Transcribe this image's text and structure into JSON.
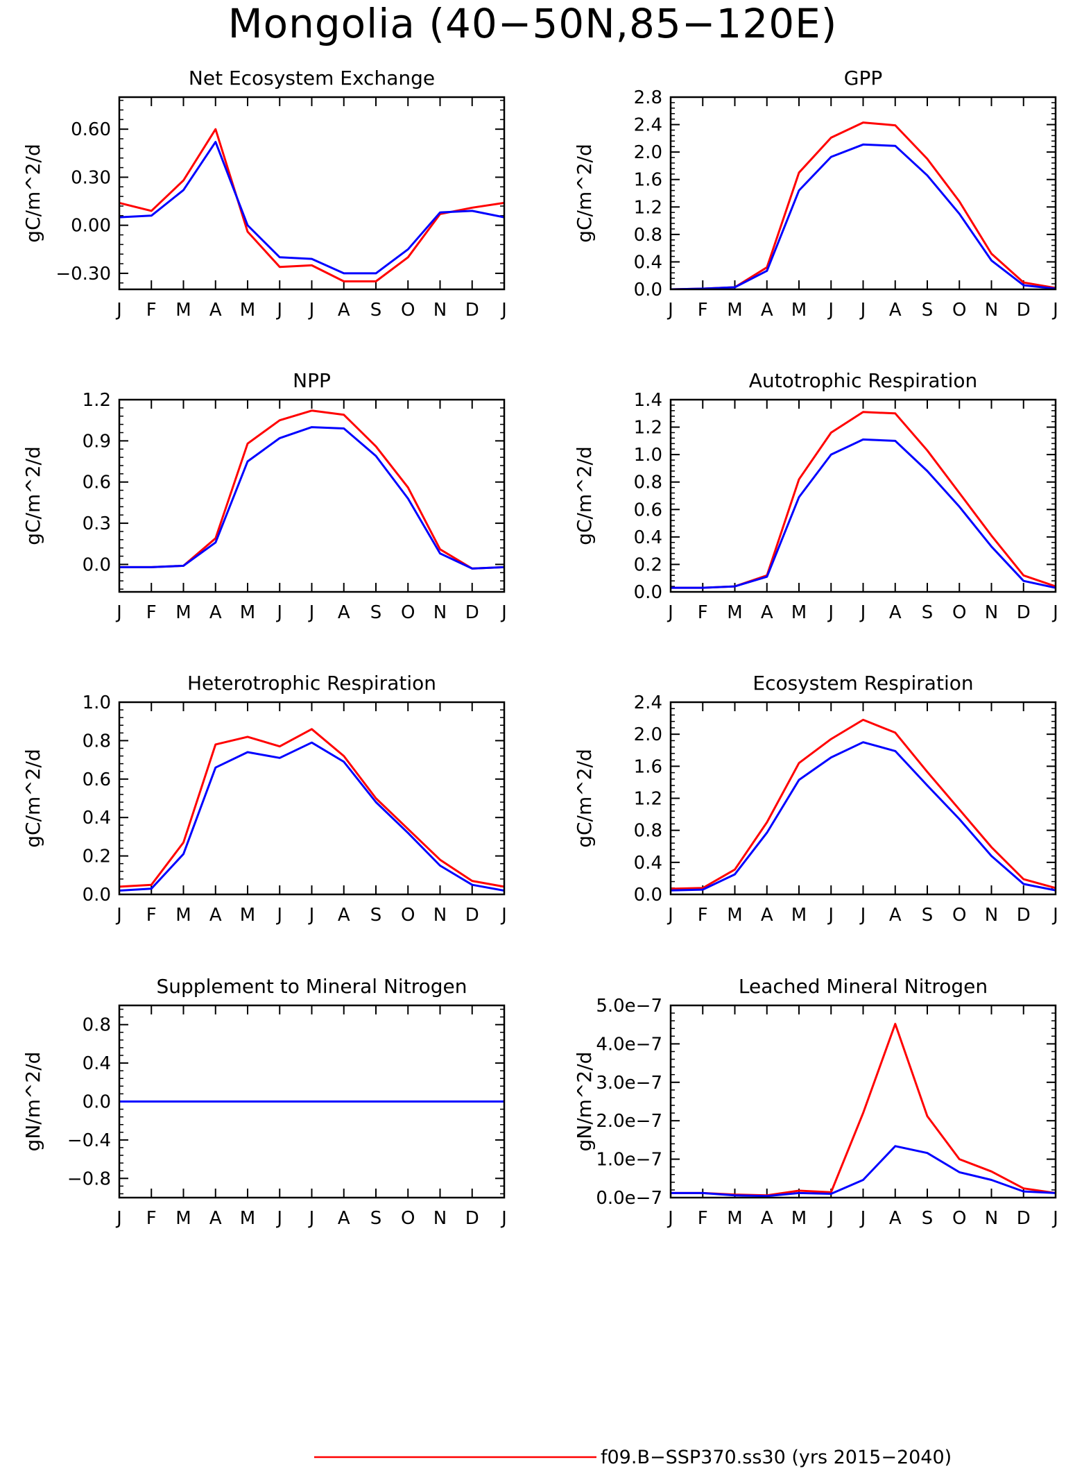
{
  "figure": {
    "title": "Mongolia (40−50N,85−120E)",
    "months": [
      "J",
      "F",
      "M",
      "A",
      "M",
      "J",
      "J",
      "A",
      "S",
      "O",
      "N",
      "D",
      "J"
    ],
    "series_colors": {
      "ssp370": "#ff0000",
      "second": "#0000ff"
    }
  },
  "legend": {
    "entries": [
      {
        "label": "f09.B−SSP370.ss30 (yrs 2015−2040)",
        "color": "#ff0000"
      }
    ]
  },
  "chart_data": [
    {
      "type": "line",
      "title": "Net Ecosystem Exchange",
      "ylabel": "gC/m^2/d",
      "ylim": [
        -0.4,
        0.8
      ],
      "yticks": [
        -0.3,
        0.0,
        0.3,
        0.6
      ],
      "ytick_labels": [
        "−0.30",
        "0.00",
        "0.30",
        "0.60"
      ],
      "x": [
        "J",
        "F",
        "M",
        "A",
        "M",
        "J",
        "J",
        "A",
        "S",
        "O",
        "N",
        "D",
        "J"
      ],
      "series": [
        {
          "color": "#ff0000",
          "values": [
            0.14,
            0.09,
            0.28,
            0.6,
            -0.04,
            -0.26,
            -0.25,
            -0.35,
            -0.35,
            -0.2,
            0.07,
            0.11,
            0.14
          ]
        },
        {
          "color": "#0000ff",
          "values": [
            0.05,
            0.06,
            0.22,
            0.52,
            0.0,
            -0.2,
            -0.21,
            -0.3,
            -0.3,
            -0.15,
            0.08,
            0.09,
            0.05
          ]
        }
      ]
    },
    {
      "type": "line",
      "title": "GPP",
      "ylabel": "gC/m^2/d",
      "ylim": [
        0.0,
        2.8
      ],
      "yticks": [
        0.0,
        0.4,
        0.8,
        1.2,
        1.6,
        2.0,
        2.4,
        2.8
      ],
      "ytick_labels": [
        "0.0",
        "0.4",
        "0.8",
        "1.2",
        "1.6",
        "2.0",
        "2.4",
        "2.8"
      ],
      "x": [
        "J",
        "F",
        "M",
        "A",
        "M",
        "J",
        "J",
        "A",
        "S",
        "O",
        "N",
        "D",
        "J"
      ],
      "series": [
        {
          "color": "#ff0000",
          "values": [
            0.0,
            0.01,
            0.03,
            0.32,
            1.7,
            2.21,
            2.43,
            2.39,
            1.9,
            1.28,
            0.52,
            0.1,
            0.02
          ]
        },
        {
          "color": "#0000ff",
          "values": [
            0.0,
            0.01,
            0.03,
            0.27,
            1.44,
            1.93,
            2.11,
            2.09,
            1.66,
            1.1,
            0.42,
            0.06,
            0.01
          ]
        }
      ]
    },
    {
      "type": "line",
      "title": "NPP",
      "ylabel": "gC/m^2/d",
      "ylim": [
        -0.2,
        1.2
      ],
      "yticks": [
        0.0,
        0.3,
        0.6,
        0.9,
        1.2
      ],
      "ytick_labels": [
        "0.0",
        "0.3",
        "0.6",
        "0.9",
        "1.2"
      ],
      "x": [
        "J",
        "F",
        "M",
        "A",
        "M",
        "J",
        "J",
        "A",
        "S",
        "O",
        "N",
        "D",
        "J"
      ],
      "series": [
        {
          "color": "#ff0000",
          "values": [
            -0.02,
            -0.02,
            -0.01,
            0.19,
            0.88,
            1.05,
            1.12,
            1.09,
            0.86,
            0.56,
            0.11,
            -0.03,
            -0.02
          ]
        },
        {
          "color": "#0000ff",
          "values": [
            -0.02,
            -0.02,
            -0.01,
            0.16,
            0.75,
            0.92,
            1.0,
            0.99,
            0.79,
            0.48,
            0.08,
            -0.03,
            -0.02
          ]
        }
      ]
    },
    {
      "type": "line",
      "title": "Autotrophic Respiration",
      "ylabel": "gC/m^2/d",
      "ylim": [
        0.0,
        1.4
      ],
      "yticks": [
        0.0,
        0.2,
        0.4,
        0.6,
        0.8,
        1.0,
        1.2,
        1.4
      ],
      "ytick_labels": [
        "0.0",
        "0.2",
        "0.4",
        "0.6",
        "0.8",
        "1.0",
        "1.2",
        "1.4"
      ],
      "x": [
        "J",
        "F",
        "M",
        "A",
        "M",
        "J",
        "J",
        "A",
        "S",
        "O",
        "N",
        "D",
        "J"
      ],
      "series": [
        {
          "color": "#ff0000",
          "values": [
            0.03,
            0.03,
            0.04,
            0.12,
            0.82,
            1.16,
            1.31,
            1.3,
            1.03,
            0.72,
            0.41,
            0.12,
            0.04
          ]
        },
        {
          "color": "#0000ff",
          "values": [
            0.03,
            0.03,
            0.04,
            0.11,
            0.69,
            1.0,
            1.11,
            1.1,
            0.88,
            0.62,
            0.33,
            0.08,
            0.03
          ]
        }
      ]
    },
    {
      "type": "line",
      "title": "Heterotrophic Respiration",
      "ylabel": "gC/m^2/d",
      "ylim": [
        0.0,
        1.0
      ],
      "yticks": [
        0.0,
        0.2,
        0.4,
        0.6,
        0.8,
        1.0
      ],
      "ytick_labels": [
        "0.0",
        "0.2",
        "0.4",
        "0.6",
        "0.8",
        "1.0"
      ],
      "x": [
        "J",
        "F",
        "M",
        "A",
        "M",
        "J",
        "J",
        "A",
        "S",
        "O",
        "N",
        "D",
        "J"
      ],
      "series": [
        {
          "color": "#ff0000",
          "values": [
            0.04,
            0.05,
            0.27,
            0.78,
            0.82,
            0.77,
            0.86,
            0.72,
            0.5,
            0.34,
            0.18,
            0.07,
            0.04
          ]
        },
        {
          "color": "#0000ff",
          "values": [
            0.02,
            0.03,
            0.21,
            0.66,
            0.74,
            0.71,
            0.79,
            0.69,
            0.48,
            0.32,
            0.15,
            0.05,
            0.02
          ]
        }
      ]
    },
    {
      "type": "line",
      "title": "Ecosystem Respiration",
      "ylabel": "gC/m^2/d",
      "ylim": [
        0.0,
        2.4
      ],
      "yticks": [
        0.0,
        0.4,
        0.8,
        1.2,
        1.6,
        2.0,
        2.4
      ],
      "ytick_labels": [
        "0.0",
        "0.4",
        "0.8",
        "1.2",
        "1.6",
        "2.0",
        "2.4"
      ],
      "x": [
        "J",
        "F",
        "M",
        "A",
        "M",
        "J",
        "J",
        "A",
        "S",
        "O",
        "N",
        "D",
        "J"
      ],
      "series": [
        {
          "color": "#ff0000",
          "values": [
            0.07,
            0.08,
            0.31,
            0.9,
            1.64,
            1.94,
            2.18,
            2.02,
            1.53,
            1.06,
            0.59,
            0.19,
            0.08
          ]
        },
        {
          "color": "#0000ff",
          "values": [
            0.05,
            0.06,
            0.25,
            0.77,
            1.43,
            1.71,
            1.9,
            1.79,
            1.36,
            0.94,
            0.48,
            0.13,
            0.05
          ]
        }
      ]
    },
    {
      "type": "line",
      "title": "Supplement to Mineral Nitrogen",
      "ylabel": "gN/m^2/d",
      "ylim": [
        -1.0,
        1.0
      ],
      "yticks": [
        -0.8,
        -0.4,
        0.0,
        0.4,
        0.8
      ],
      "ytick_labels": [
        "−0.8",
        "−0.4",
        "0.0",
        "0.4",
        "0.8"
      ],
      "x": [
        "J",
        "F",
        "M",
        "A",
        "M",
        "J",
        "J",
        "A",
        "S",
        "O",
        "N",
        "D",
        "J"
      ],
      "series": [
        {
          "color": "#ff0000",
          "values": [
            0,
            0,
            0,
            0,
            0,
            0,
            0,
            0,
            0,
            0,
            0,
            0,
            0
          ]
        },
        {
          "color": "#0000ff",
          "values": [
            0,
            0,
            0,
            0,
            0,
            0,
            0,
            0,
            0,
            0,
            0,
            0,
            0
          ]
        }
      ]
    },
    {
      "type": "line",
      "title": "Leached Mineral Nitrogen",
      "ylabel": "gN/m^2/d",
      "ylim": [
        0.0,
        5e-07
      ],
      "yticks": [
        0.0,
        1e-07,
        2e-07,
        3e-07,
        4e-07,
        5e-07
      ],
      "ytick_labels": [
        "0.0e−7",
        "1.0e−7",
        "2.0e−7",
        "3.0e−7",
        "4.0e−7",
        "5.0e−7"
      ],
      "x": [
        "J",
        "F",
        "M",
        "A",
        "M",
        "J",
        "J",
        "A",
        "S",
        "O",
        "N",
        "D",
        "J"
      ],
      "series": [
        {
          "color": "#ff0000",
          "values": [
            1.2e-08,
            1.2e-08,
            8e-09,
            6e-09,
            1.8e-08,
            1.4e-08,
            2.2e-07,
            4.52e-07,
            2.12e-07,
            1e-07,
            6.8e-08,
            2.4e-08,
            1.2e-08
          ]
        },
        {
          "color": "#0000ff",
          "values": [
            1.2e-08,
            1.2e-08,
            6e-09,
            4e-09,
            1.2e-08,
            1e-08,
            4.6e-08,
            1.34e-07,
            1.16e-07,
            6.6e-08,
            4.6e-08,
            1.6e-08,
            1.2e-08
          ]
        }
      ]
    }
  ]
}
